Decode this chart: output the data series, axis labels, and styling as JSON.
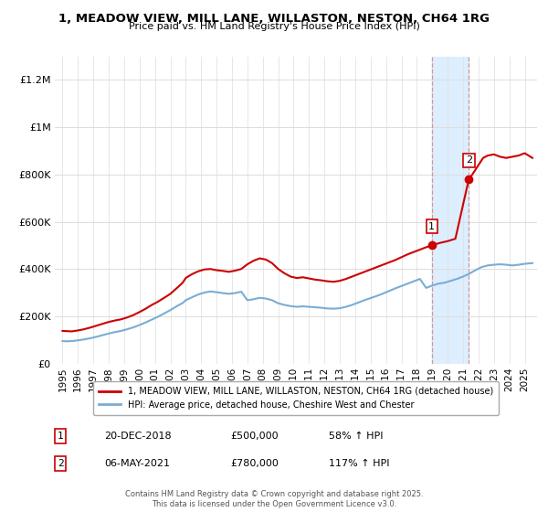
{
  "title": "1, MEADOW VIEW, MILL LANE, WILLASTON, NESTON, CH64 1RG",
  "subtitle": "Price paid vs. HM Land Registry's House Price Index (HPI)",
  "ylabel_ticks": [
    "£0",
    "£200K",
    "£400K",
    "£600K",
    "£800K",
    "£1M",
    "£1.2M"
  ],
  "ytick_values": [
    0,
    200000,
    400000,
    600000,
    800000,
    1000000,
    1200000
  ],
  "ylim": [
    0,
    1300000
  ],
  "xlim_start": 1994.5,
  "xlim_end": 2025.8,
  "red_color": "#cc0000",
  "blue_color": "#7aadd4",
  "shaded_color": "#ddeeff",
  "shade_x1": 2018.97,
  "shade_x2": 2021.37,
  "ann1_x": 2018.97,
  "ann1_y": 500000,
  "ann2_x": 2021.37,
  "ann2_y": 780000,
  "footnote": "Contains HM Land Registry data © Crown copyright and database right 2025.\nThis data is licensed under the Open Government Licence v3.0.",
  "legend_label_red": "1, MEADOW VIEW, MILL LANE, WILLASTON, NESTON, CH64 1RG (detached house)",
  "legend_label_blue": "HPI: Average price, detached house, Cheshire West and Chester",
  "table_rows": [
    {
      "num": "1",
      "date": "20-DEC-2018",
      "price": "£500,000",
      "hpi": "58% ↑ HPI"
    },
    {
      "num": "2",
      "date": "06-MAY-2021",
      "price": "£780,000",
      "hpi": "117% ↑ HPI"
    }
  ],
  "red_x": [
    1995.0,
    1995.3,
    1995.6,
    1996.0,
    1996.4,
    1996.8,
    1997.2,
    1997.6,
    1998.0,
    1998.4,
    1998.8,
    1999.2,
    1999.6,
    2000.0,
    2000.4,
    2000.8,
    2001.2,
    2001.6,
    2002.0,
    2002.4,
    2002.8,
    2003.0,
    2003.4,
    2003.8,
    2004.2,
    2004.6,
    2005.0,
    2005.4,
    2005.8,
    2006.2,
    2006.6,
    2007.0,
    2007.4,
    2007.8,
    2008.2,
    2008.6,
    2009.0,
    2009.4,
    2009.8,
    2010.2,
    2010.6,
    2011.0,
    2011.4,
    2011.8,
    2012.2,
    2012.6,
    2013.0,
    2013.4,
    2013.8,
    2014.2,
    2014.6,
    2015.0,
    2015.4,
    2015.8,
    2016.2,
    2016.6,
    2017.0,
    2017.4,
    2017.8,
    2018.2,
    2018.6,
    2018.97,
    2019.2,
    2019.6,
    2020.0,
    2020.5,
    2021.37,
    2021.6,
    2022.0,
    2022.3,
    2022.6,
    2023.0,
    2023.4,
    2023.8,
    2024.2,
    2024.6,
    2025.0,
    2025.5
  ],
  "red_y": [
    138000,
    137000,
    136000,
    140000,
    145000,
    152000,
    160000,
    168000,
    176000,
    182000,
    187000,
    195000,
    205000,
    218000,
    232000,
    248000,
    262000,
    278000,
    295000,
    318000,
    342000,
    362000,
    378000,
    390000,
    398000,
    400000,
    395000,
    392000,
    388000,
    393000,
    400000,
    420000,
    435000,
    445000,
    440000,
    425000,
    400000,
    382000,
    368000,
    362000,
    365000,
    360000,
    355000,
    352000,
    348000,
    346000,
    350000,
    358000,
    368000,
    378000,
    388000,
    398000,
    408000,
    418000,
    428000,
    438000,
    450000,
    462000,
    472000,
    482000,
    492000,
    500000,
    505000,
    512000,
    518000,
    528000,
    780000,
    800000,
    840000,
    870000,
    880000,
    885000,
    875000,
    870000,
    875000,
    880000,
    890000,
    870000
  ],
  "blue_x": [
    1995.0,
    1995.3,
    1995.6,
    1996.0,
    1996.4,
    1996.8,
    1997.2,
    1997.6,
    1998.0,
    1998.4,
    1998.8,
    1999.2,
    1999.6,
    2000.0,
    2000.4,
    2000.8,
    2001.2,
    2001.6,
    2002.0,
    2002.4,
    2002.8,
    2003.0,
    2003.4,
    2003.8,
    2004.2,
    2004.6,
    2005.0,
    2005.4,
    2005.8,
    2006.2,
    2006.6,
    2007.0,
    2007.4,
    2007.8,
    2008.2,
    2008.6,
    2009.0,
    2009.4,
    2009.8,
    2010.2,
    2010.6,
    2011.0,
    2011.4,
    2011.8,
    2012.2,
    2012.6,
    2013.0,
    2013.4,
    2013.8,
    2014.2,
    2014.6,
    2015.0,
    2015.4,
    2015.8,
    2016.2,
    2016.6,
    2017.0,
    2017.4,
    2017.8,
    2018.2,
    2018.6,
    2019.0,
    2019.4,
    2019.8,
    2020.2,
    2020.6,
    2021.0,
    2021.4,
    2021.8,
    2022.2,
    2022.6,
    2023.0,
    2023.4,
    2023.8,
    2024.2,
    2024.6,
    2025.0,
    2025.5
  ],
  "blue_y": [
    95000,
    94000,
    95000,
    98000,
    102000,
    107000,
    113000,
    120000,
    127000,
    133000,
    138000,
    145000,
    153000,
    163000,
    174000,
    186000,
    198000,
    212000,
    226000,
    242000,
    256000,
    268000,
    280000,
    292000,
    300000,
    305000,
    302000,
    298000,
    295000,
    298000,
    304000,
    268000,
    272000,
    278000,
    275000,
    268000,
    255000,
    248000,
    243000,
    240000,
    242000,
    240000,
    238000,
    236000,
    233000,
    232000,
    234000,
    240000,
    248000,
    258000,
    268000,
    277000,
    286000,
    296000,
    307000,
    318000,
    328000,
    338000,
    348000,
    358000,
    320000,
    330000,
    338000,
    342000,
    350000,
    358000,
    368000,
    380000,
    395000,
    408000,
    415000,
    418000,
    420000,
    418000,
    415000,
    418000,
    422000,
    425000
  ]
}
